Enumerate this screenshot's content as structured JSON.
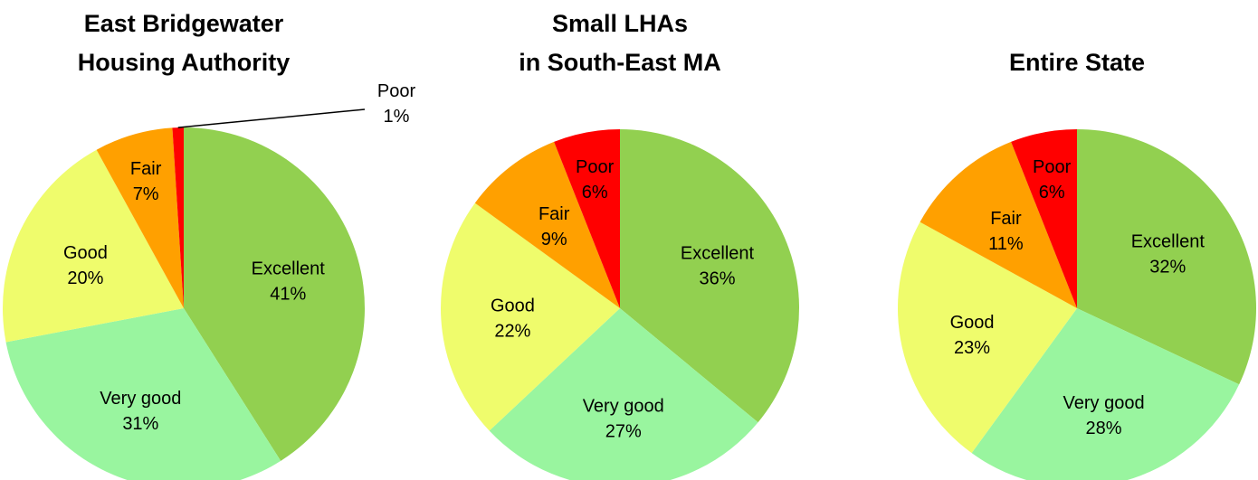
{
  "chart_data": [
    {
      "type": "pie",
      "title": [
        "East Bridgewater",
        "Housing Authority"
      ],
      "categories": [
        "Excellent",
        "Very good",
        "Good",
        "Fair",
        "Poor"
      ],
      "values": [
        41,
        31,
        20,
        7,
        1
      ],
      "value_labels": [
        "41%",
        "31%",
        "20%",
        "7%",
        "1%"
      ],
      "colors": [
        "#92d050",
        "#99f59f",
        "#effc6c",
        "#ffa000",
        "#ff0000"
      ]
    },
    {
      "type": "pie",
      "title": [
        "Small LHAs",
        "in South-East MA"
      ],
      "categories": [
        "Excellent",
        "Very good",
        "Good",
        "Fair",
        "Poor"
      ],
      "values": [
        36,
        27,
        22,
        9,
        6
      ],
      "value_labels": [
        "36%",
        "27%",
        "22%",
        "9%",
        "6%"
      ],
      "colors": [
        "#92d050",
        "#99f59f",
        "#effc6c",
        "#ffa000",
        "#ff0000"
      ]
    },
    {
      "type": "pie",
      "title": [
        "Entire State"
      ],
      "categories": [
        "Excellent",
        "Very good",
        "Good",
        "Fair",
        "Poor"
      ],
      "values": [
        32,
        28,
        23,
        11,
        6
      ],
      "value_labels": [
        "32%",
        "28%",
        "23%",
        "11%",
        "6%"
      ],
      "colors": [
        "#92d050",
        "#99f59f",
        "#effc6c",
        "#ffa000",
        "#ff0000"
      ]
    }
  ]
}
